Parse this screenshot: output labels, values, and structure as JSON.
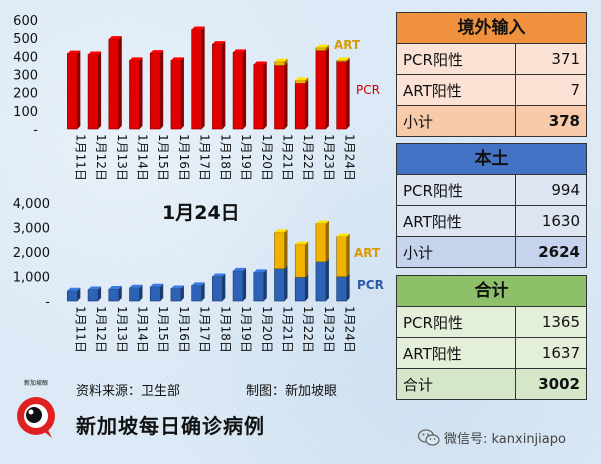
{
  "chart_data": [
    {
      "type": "bar",
      "stacked": true,
      "categories": [
        "1月11日",
        "1月12日",
        "1月13日",
        "1月14日",
        "1月15日",
        "1月16日",
        "1月17日",
        "1月18日",
        "1月19日",
        "1月20日",
        "1月21日",
        "1月22日",
        "1月23日",
        "1月24日"
      ],
      "series": [
        {
          "name": "PCR",
          "color": "#e00000",
          "values": [
            415,
            410,
            495,
            378,
            418,
            378,
            548,
            467,
            422,
            355,
            350,
            252,
            432,
            371
          ]
        },
        {
          "name": "ART",
          "color": "#f2b300",
          "values": [
            0,
            0,
            0,
            0,
            0,
            0,
            0,
            0,
            0,
            0,
            20,
            15,
            15,
            7
          ]
        }
      ],
      "yticks": [
        "600",
        "500",
        "400",
        "300",
        "200",
        "100",
        "-"
      ],
      "ylim": [
        0,
        600
      ]
    },
    {
      "type": "bar",
      "stacked": true,
      "categories": [
        "1月11日",
        "1月12日",
        "1月13日",
        "1月14日",
        "1月15日",
        "1月16日",
        "1月17日",
        "1月18日",
        "1月19日",
        "1月20日",
        "1月21日",
        "1月22日",
        "1月23日",
        "1月24日"
      ],
      "series": [
        {
          "name": "PCR",
          "color": "#2e62b6",
          "values": [
            420,
            470,
            490,
            540,
            580,
            510,
            640,
            1000,
            1230,
            1170,
            1320,
            970,
            1600,
            994
          ]
        },
        {
          "name": "ART",
          "color": "#f2b300",
          "values": [
            0,
            0,
            0,
            0,
            0,
            0,
            0,
            0,
            0,
            0,
            1480,
            1330,
            1560,
            1630
          ]
        }
      ],
      "yticks": [
        "4,000",
        "3,000",
        "2,000",
        "1,000",
        "-"
      ],
      "ylim": [
        0,
        4000
      ]
    }
  ],
  "labels": {
    "date_title": "1月24日",
    "art": "ART",
    "pcr": "PCR"
  },
  "tables": {
    "overseas": {
      "title": "境外输入",
      "rows": [
        {
          "label": "PCR阳性",
          "value": "371"
        },
        {
          "label": "ART阳性",
          "value": "7"
        },
        {
          "label": "小计",
          "value": "378"
        }
      ]
    },
    "local": {
      "title": "本土",
      "rows": [
        {
          "label": "PCR阳性",
          "value": "994"
        },
        {
          "label": "ART阳性",
          "value": "1630"
        },
        {
          "label": "小计",
          "value": "2624"
        }
      ]
    },
    "total": {
      "title": "合计",
      "rows": [
        {
          "label": "PCR阳性",
          "value": "1365"
        },
        {
          "label": "ART阳性",
          "value": "1637"
        },
        {
          "label": "合计",
          "value": "3002"
        }
      ]
    }
  },
  "footer": {
    "source": "资料来源：卫生部",
    "made_by": "制图：新加坡眼",
    "title": "新加坡每日确诊病例",
    "wechat": "微信号: kanxinjiapo",
    "logo_text": "新加坡眼"
  },
  "icons": {
    "logo": "eye-logo-icon",
    "wechat": "wechat-icon"
  }
}
